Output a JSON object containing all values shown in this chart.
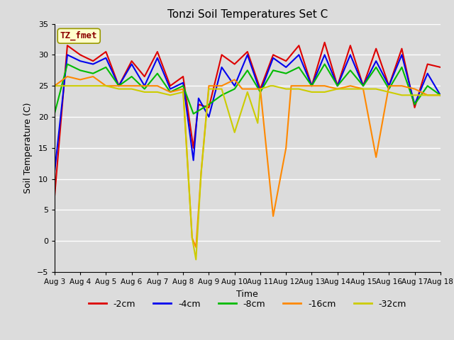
{
  "title": "Tonzi Soil Temperatures Set C",
  "xlabel": "Time",
  "ylabel": "Soil Temperature (C)",
  "ylim": [
    -5,
    35
  ],
  "xlim": [
    0,
    15
  ],
  "background_color": "#dcdcdc",
  "plot_bg_color": "#dcdcdc",
  "annotation_text": "TZ_fmet",
  "annotation_color": "#8b0000",
  "annotation_bg": "#ffffcc",
  "x_ticks_labels": [
    "Aug 3",
    "Aug 4",
    "Aug 5",
    "Aug 6",
    "Aug 7",
    "Aug 8",
    "Aug 9",
    "Aug 10",
    "Aug 11",
    "Aug 12",
    "Aug 13",
    "Aug 14",
    "Aug 15",
    "Aug 16",
    "Aug 17",
    "Aug 18"
  ],
  "series": {
    "-2cm": {
      "color": "#dd0000",
      "data_x": [
        0,
        0.5,
        1,
        1.5,
        2,
        2.5,
        3,
        3.5,
        4,
        4.5,
        5,
        5.4,
        5.6,
        6,
        6.5,
        7,
        7.5,
        8,
        8.5,
        9,
        9.5,
        10,
        10.5,
        11,
        11.5,
        12,
        12.5,
        13,
        13.5,
        14,
        14.5,
        15
      ],
      "data_y": [
        7,
        31.5,
        30,
        29,
        30.5,
        25,
        29,
        26.5,
        30.5,
        25,
        26.5,
        15,
        22,
        21.5,
        30,
        28.5,
        30.5,
        24.5,
        30,
        29,
        31.5,
        25,
        32,
        25,
        31.5,
        25,
        31,
        25,
        31,
        21.5,
        28.5,
        28
      ]
    },
    "-4cm": {
      "color": "#0000ee",
      "data_x": [
        0,
        0.5,
        1,
        1.5,
        2,
        2.5,
        3,
        3.5,
        4,
        4.5,
        5,
        5.4,
        5.6,
        6,
        6.5,
        7,
        7.5,
        8,
        8.5,
        9,
        9.5,
        10,
        10.5,
        11,
        11.5,
        12,
        12.5,
        13,
        13.5,
        14,
        14.5,
        15
      ],
      "data_y": [
        11,
        30,
        29,
        28.5,
        29.5,
        25,
        28.5,
        25,
        29.5,
        24.5,
        25.5,
        13,
        23,
        20,
        28,
        25,
        30,
        24,
        29.5,
        28,
        30,
        25,
        30,
        25,
        30,
        25,
        29,
        25,
        30,
        22,
        27,
        23.5
      ]
    },
    "-8cm": {
      "color": "#00bb00",
      "data_x": [
        0,
        0.5,
        1,
        1.5,
        2,
        2.5,
        3,
        3.5,
        4,
        4.5,
        5,
        5.4,
        5.6,
        6,
        6.5,
        7,
        7.5,
        8,
        8.5,
        9,
        9.5,
        10,
        10.5,
        11,
        11.5,
        12,
        12.5,
        13,
        13.5,
        14,
        14.5,
        15
      ],
      "data_y": [
        20.5,
        28.5,
        27.5,
        27,
        28,
        25,
        26.5,
        24.5,
        27,
        24,
        25,
        20.5,
        21,
        22,
        23.5,
        24.5,
        27.5,
        24,
        27.5,
        27,
        28,
        25,
        28.5,
        25,
        27.5,
        25,
        28,
        24.5,
        28,
        22,
        25,
        23.5
      ]
    },
    "-16cm": {
      "color": "#ff8800",
      "data_x": [
        0,
        0.5,
        1,
        1.5,
        2,
        2.5,
        3,
        3.5,
        4,
        4.5,
        5,
        5.35,
        5.5,
        5.7,
        6,
        6.5,
        7,
        7.3,
        7.5,
        8,
        8.5,
        9,
        9.2,
        9.5,
        10,
        10.5,
        11,
        11.5,
        12,
        12.5,
        13,
        13.5,
        14,
        14.5,
        15
      ],
      "data_y": [
        25,
        26.5,
        26,
        26.5,
        25,
        25,
        25,
        25,
        25,
        24,
        24.5,
        0.5,
        -1,
        11,
        25,
        25,
        26,
        24.5,
        24.5,
        24.5,
        4,
        15,
        25,
        25,
        25,
        25,
        24.5,
        25,
        24.5,
        13.5,
        25,
        25,
        24.5,
        23.5,
        23.5
      ]
    },
    "-32cm": {
      "color": "#cccc00",
      "data_x": [
        0,
        0.5,
        1,
        1.5,
        2,
        2.5,
        3,
        3.5,
        4,
        4.5,
        5,
        5.35,
        5.5,
        5.7,
        6,
        6.5,
        7,
        7.5,
        7.9,
        8,
        8.4,
        8.5,
        9,
        9.5,
        10,
        10.5,
        11,
        11.5,
        12,
        12.5,
        13,
        13.5,
        14,
        14.5,
        15
      ],
      "data_y": [
        25,
        25,
        25,
        25,
        25,
        24.5,
        24.5,
        24,
        24,
        23.5,
        24,
        0.5,
        -3,
        11,
        24.5,
        24.5,
        17.5,
        24,
        19,
        24.5,
        25,
        25,
        24.5,
        24.5,
        24,
        24,
        24.5,
        24.5,
        24.5,
        24.5,
        24,
        23.5,
        23.5,
        23.5,
        23.5
      ]
    }
  },
  "legend_entries": [
    "-2cm",
    "-4cm",
    "-8cm",
    "-16cm",
    "-32cm"
  ],
  "legend_colors": [
    "#dd0000",
    "#0000ee",
    "#00bb00",
    "#ff8800",
    "#cccc00"
  ]
}
